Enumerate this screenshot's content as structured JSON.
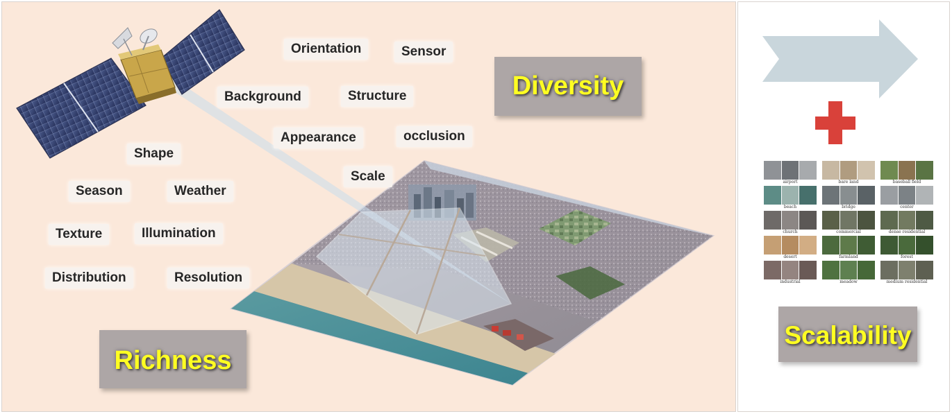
{
  "labels": {
    "diversity": "Diversity",
    "richness": "Richness",
    "scalability": "Scalability"
  },
  "attributes": [
    "Orientation",
    "Sensor",
    "Background",
    "Structure",
    "Appearance",
    "occlusion",
    "Scale",
    "Shape",
    "Season",
    "Weather",
    "Texture",
    "Illumination",
    "Distribution",
    "Resolution"
  ],
  "scene_classes": [
    "airport",
    "bare land",
    "baseball field",
    "beach",
    "bridge",
    "center",
    "church",
    "commercial",
    "dense residential",
    "desert",
    "farmland",
    "forest",
    "industrial",
    "meadow",
    "medium residential"
  ],
  "icons": {
    "satellite": "satellite-icon",
    "arrow": "right-arrow-icon",
    "plus": "plus-icon"
  },
  "colors": {
    "left_background": "#fbe8da",
    "label_box": "#ada6a6",
    "label_text": "#ffff22",
    "arrow": "#c9d6dc",
    "plus": "#d9413a"
  }
}
